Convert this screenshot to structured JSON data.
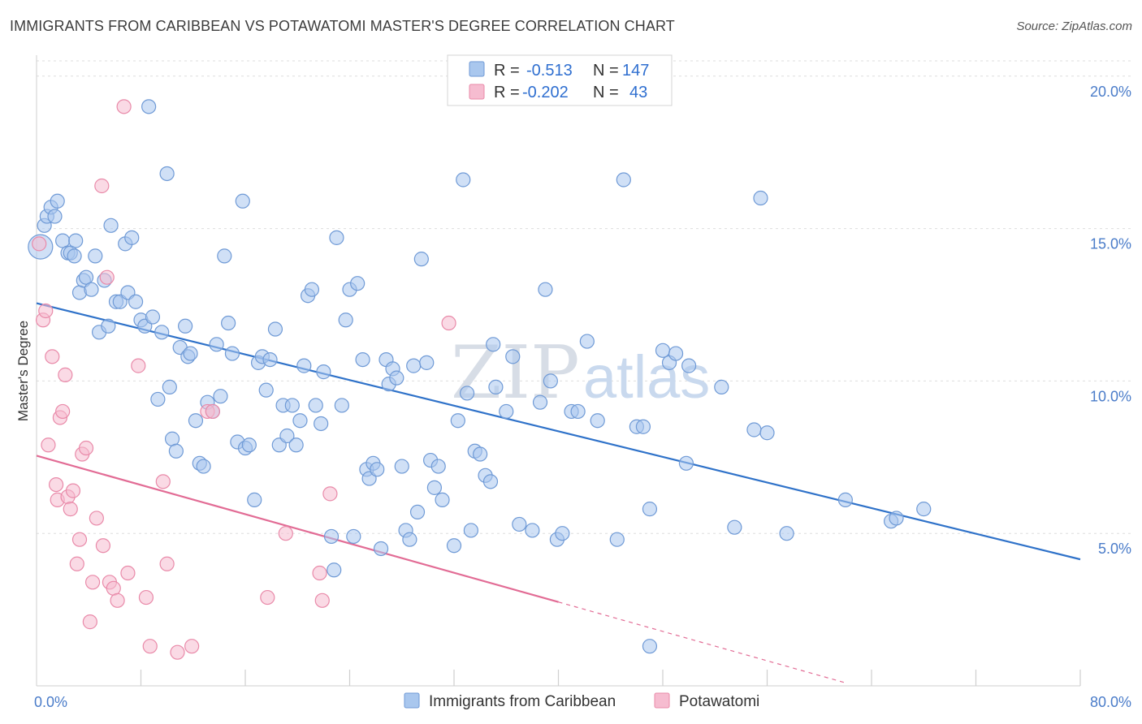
{
  "title": "IMMIGRANTS FROM CARIBBEAN VS POTAWATOMI MASTER'S DEGREE CORRELATION CHART",
  "source": "Source: ZipAtlas.com",
  "watermark": {
    "zip": "ZIP",
    "atlas": "atlas"
  },
  "colors": {
    "blue_fill": "#a9c7ee",
    "blue_stroke": "#6f9ad6",
    "blue_line": "#2f72c9",
    "pink_fill": "#f6bcd0",
    "pink_stroke": "#e98aa9",
    "pink_line": "#e26c95",
    "value_text": "#2f6fd0",
    "grid": "#dddddd"
  },
  "legend": {
    "rows": [
      {
        "r_label": "R =",
        "r_value": "-0.513",
        "n_label": "N =",
        "n_value": "147"
      },
      {
        "r_label": "R =",
        "r_value": "-0.202",
        "n_label": "N =",
        "n_value": "43"
      }
    ]
  },
  "chart_data": {
    "type": "scatter",
    "title": "IMMIGRANTS FROM CARIBBEAN VS POTAWATOMI MASTER'S DEGREE CORRELATION CHART",
    "xlabel": "",
    "ylabel": "Master's Degree",
    "xlim": [
      0,
      80
    ],
    "ylim": [
      0,
      20.5
    ],
    "x_tick_labels": [
      "0.0%",
      "80.0%"
    ],
    "y_ticks": [
      5,
      10,
      15,
      20
    ],
    "y_tick_labels": [
      "5.0%",
      "10.0%",
      "15.0%",
      "20.0%"
    ],
    "series": [
      {
        "name": "Immigrants from Caribbean",
        "color": "#a9c7ee",
        "regression": {
          "x": [
            0,
            80
          ],
          "y": [
            12.55,
            4.15
          ]
        },
        "points": [
          [
            0.3,
            14.4
          ],
          [
            0.6,
            15.1
          ],
          [
            0.8,
            15.4
          ],
          [
            1.1,
            15.7
          ],
          [
            1.4,
            15.4
          ],
          [
            1.6,
            15.9
          ],
          [
            2.0,
            14.6
          ],
          [
            2.4,
            14.2
          ],
          [
            2.6,
            14.2
          ],
          [
            2.9,
            14.1
          ],
          [
            3.0,
            14.6
          ],
          [
            3.3,
            12.9
          ],
          [
            3.6,
            13.3
          ],
          [
            3.8,
            13.4
          ],
          [
            4.2,
            13.0
          ],
          [
            4.5,
            14.1
          ],
          [
            4.8,
            11.6
          ],
          [
            5.2,
            13.3
          ],
          [
            5.5,
            11.8
          ],
          [
            5.7,
            15.1
          ],
          [
            6.1,
            12.6
          ],
          [
            6.4,
            12.6
          ],
          [
            6.8,
            14.5
          ],
          [
            7.0,
            12.9
          ],
          [
            7.3,
            14.7
          ],
          [
            7.6,
            12.6
          ],
          [
            8.0,
            12.0
          ],
          [
            8.3,
            11.8
          ],
          [
            8.6,
            19.0
          ],
          [
            8.9,
            12.1
          ],
          [
            9.3,
            9.4
          ],
          [
            9.6,
            11.6
          ],
          [
            10.0,
            16.8
          ],
          [
            10.2,
            9.8
          ],
          [
            10.4,
            8.1
          ],
          [
            10.7,
            7.7
          ],
          [
            11.0,
            11.1
          ],
          [
            11.4,
            11.8
          ],
          [
            11.6,
            10.8
          ],
          [
            11.8,
            10.9
          ],
          [
            12.2,
            8.7
          ],
          [
            12.5,
            7.3
          ],
          [
            12.8,
            7.2
          ],
          [
            13.1,
            9.3
          ],
          [
            13.5,
            9.0
          ],
          [
            13.8,
            11.2
          ],
          [
            14.1,
            9.5
          ],
          [
            14.4,
            14.1
          ],
          [
            14.7,
            11.9
          ],
          [
            15.0,
            10.9
          ],
          [
            15.4,
            8.0
          ],
          [
            15.8,
            15.9
          ],
          [
            16.0,
            7.8
          ],
          [
            16.3,
            7.9
          ],
          [
            16.7,
            6.1
          ],
          [
            17.0,
            10.6
          ],
          [
            17.3,
            10.8
          ],
          [
            17.6,
            9.7
          ],
          [
            17.9,
            10.7
          ],
          [
            18.3,
            11.7
          ],
          [
            18.6,
            7.9
          ],
          [
            18.9,
            9.2
          ],
          [
            19.2,
            8.2
          ],
          [
            19.6,
            9.2
          ],
          [
            19.9,
            7.9
          ],
          [
            20.2,
            8.7
          ],
          [
            20.5,
            10.5
          ],
          [
            20.8,
            12.8
          ],
          [
            21.1,
            13.0
          ],
          [
            21.4,
            9.2
          ],
          [
            21.8,
            8.6
          ],
          [
            22.0,
            10.3
          ],
          [
            22.6,
            4.9
          ],
          [
            22.8,
            3.8
          ],
          [
            23.0,
            14.7
          ],
          [
            23.4,
            9.2
          ],
          [
            23.7,
            12.0
          ],
          [
            24.0,
            13.0
          ],
          [
            24.3,
            4.9
          ],
          [
            24.6,
            13.2
          ],
          [
            25.0,
            10.7
          ],
          [
            25.3,
            7.1
          ],
          [
            25.5,
            6.8
          ],
          [
            25.8,
            7.3
          ],
          [
            26.1,
            7.1
          ],
          [
            26.4,
            4.5
          ],
          [
            26.8,
            10.7
          ],
          [
            27.0,
            9.9
          ],
          [
            27.3,
            10.4
          ],
          [
            27.6,
            10.1
          ],
          [
            28.0,
            7.2
          ],
          [
            28.3,
            5.1
          ],
          [
            28.6,
            4.8
          ],
          [
            28.9,
            10.5
          ],
          [
            29.2,
            5.7
          ],
          [
            29.5,
            14.0
          ],
          [
            29.9,
            10.6
          ],
          [
            30.2,
            7.4
          ],
          [
            30.5,
            6.5
          ],
          [
            30.8,
            7.2
          ],
          [
            31.1,
            6.1
          ],
          [
            32.0,
            4.6
          ],
          [
            32.3,
            8.7
          ],
          [
            32.7,
            16.6
          ],
          [
            33.0,
            9.6
          ],
          [
            33.3,
            5.1
          ],
          [
            33.6,
            7.7
          ],
          [
            34.0,
            7.6
          ],
          [
            34.4,
            6.9
          ],
          [
            34.8,
            6.7
          ],
          [
            35.0,
            11.2
          ],
          [
            35.2,
            9.8
          ],
          [
            36.0,
            9.0
          ],
          [
            36.5,
            10.8
          ],
          [
            37.0,
            5.3
          ],
          [
            38.0,
            5.1
          ],
          [
            38.6,
            9.3
          ],
          [
            39.0,
            13.0
          ],
          [
            39.4,
            10.0
          ],
          [
            39.9,
            4.8
          ],
          [
            40.3,
            5.0
          ],
          [
            41.0,
            9.0
          ],
          [
            41.5,
            9.0
          ],
          [
            42.2,
            11.3
          ],
          [
            43.0,
            8.7
          ],
          [
            44.5,
            4.8
          ],
          [
            45.0,
            16.6
          ],
          [
            46.0,
            8.5
          ],
          [
            46.5,
            8.5
          ],
          [
            47.0,
            5.8
          ],
          [
            48.0,
            11.0
          ],
          [
            48.5,
            10.6
          ],
          [
            49.0,
            10.9
          ],
          [
            49.8,
            7.3
          ],
          [
            50.0,
            10.5
          ],
          [
            52.5,
            9.8
          ],
          [
            53.5,
            5.2
          ],
          [
            55.0,
            8.4
          ],
          [
            55.5,
            16.0
          ],
          [
            56.0,
            8.3
          ],
          [
            57.5,
            5.0
          ],
          [
            62.0,
            6.1
          ],
          [
            65.5,
            5.4
          ],
          [
            65.9,
            5.5
          ],
          [
            68.0,
            5.8
          ],
          [
            47.0,
            1.3
          ]
        ]
      },
      {
        "name": "Potawatomi",
        "color": "#f6bcd0",
        "regression": {
          "x": [
            0,
            40
          ],
          "y": [
            7.55,
            2.75
          ]
        },
        "regression_extension": {
          "x": [
            40,
            62
          ],
          "y": [
            2.75,
            0.1
          ]
        },
        "points": [
          [
            0.2,
            14.5
          ],
          [
            0.5,
            12.0
          ],
          [
            0.7,
            12.3
          ],
          [
            0.9,
            7.9
          ],
          [
            1.2,
            10.8
          ],
          [
            1.5,
            6.6
          ],
          [
            1.6,
            6.1
          ],
          [
            1.8,
            8.8
          ],
          [
            2.0,
            9.0
          ],
          [
            2.2,
            10.2
          ],
          [
            2.4,
            6.2
          ],
          [
            2.6,
            5.8
          ],
          [
            2.8,
            6.4
          ],
          [
            3.1,
            4.0
          ],
          [
            3.3,
            4.8
          ],
          [
            3.5,
            7.6
          ],
          [
            3.8,
            7.8
          ],
          [
            4.1,
            2.1
          ],
          [
            4.3,
            3.4
          ],
          [
            4.6,
            5.5
          ],
          [
            5.0,
            16.4
          ],
          [
            5.1,
            4.6
          ],
          [
            5.4,
            13.4
          ],
          [
            5.6,
            3.4
          ],
          [
            5.9,
            3.2
          ],
          [
            6.2,
            2.8
          ],
          [
            6.7,
            19.0
          ],
          [
            7.0,
            3.7
          ],
          [
            7.8,
            10.5
          ],
          [
            8.4,
            2.9
          ],
          [
            8.7,
            1.3
          ],
          [
            9.7,
            6.7
          ],
          [
            10.0,
            4.0
          ],
          [
            10.8,
            1.1
          ],
          [
            11.9,
            1.3
          ],
          [
            13.1,
            9.0
          ],
          [
            17.7,
            2.9
          ],
          [
            19.1,
            5.0
          ],
          [
            21.7,
            3.7
          ],
          [
            21.9,
            2.8
          ],
          [
            22.5,
            6.3
          ],
          [
            31.6,
            11.9
          ],
          [
            13.5,
            9.0
          ]
        ]
      }
    ]
  },
  "bottom_legend": [
    {
      "label": "Immigrants from Caribbean"
    },
    {
      "label": "Potawatomi"
    }
  ]
}
